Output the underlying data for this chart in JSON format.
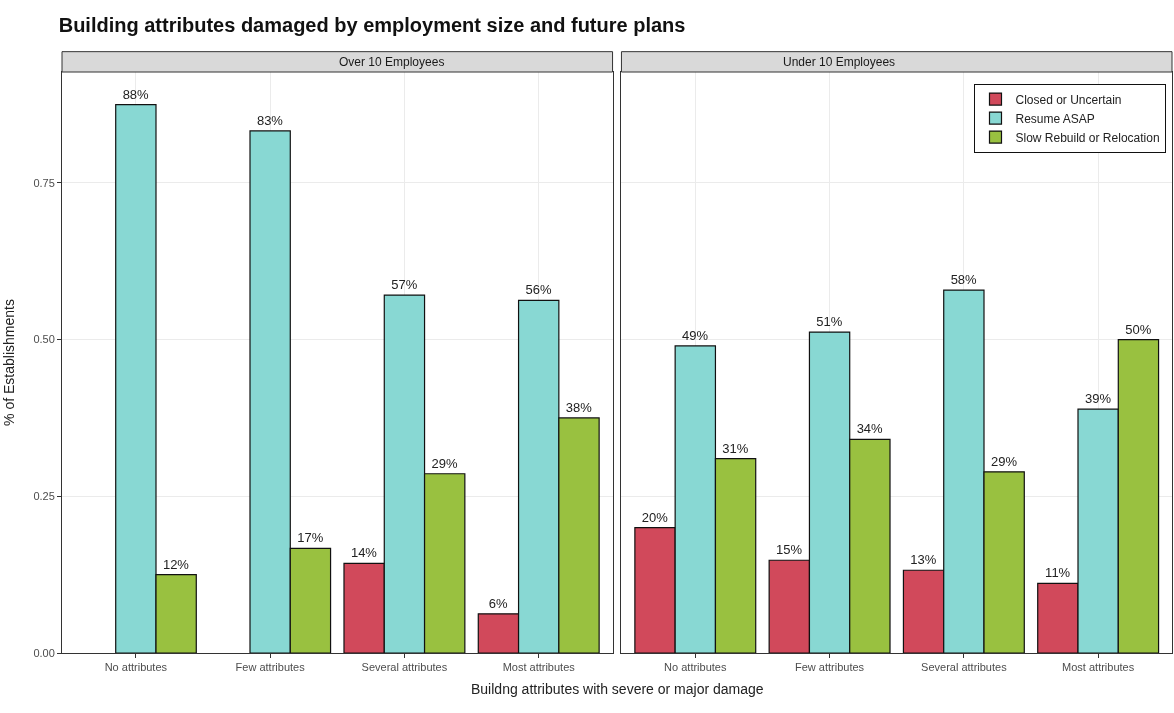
{
  "chart_data": [
    {
      "type": "bar",
      "title": "Building attributes damaged by employment size and future plans",
      "subtitle": "Over 10 Employees",
      "xlabel": "Buildng attributes with severe or major damage",
      "ylabel": "% of Establishments",
      "categories": [
        "No attributes",
        "Few attributes",
        "Several attributes",
        "Most attributes"
      ],
      "series": [
        {
          "color": "#d1495b",
          "values": [
            null,
            null,
            0.143,
            0.0625
          ],
          "value_labels": [
            null,
            null,
            "14%",
            "6%"
          ]
        },
        {
          "color": "#88d8d3",
          "values": [
            0.875,
            0.833,
            0.571,
            0.5625
          ],
          "value_labels": [
            "88%",
            "83%",
            "57%",
            "56%"
          ]
        },
        {
          "color": "#99c140",
          "values": [
            0.125,
            0.167,
            0.286,
            0.375
          ],
          "value_labels": [
            "12%",
            "17%",
            "29%",
            "38%"
          ]
        }
      ],
      "ylim": [
        0,
        0.927
      ],
      "yticks": [
        {
          "value": 0,
          "label": "0.00"
        },
        {
          "value": 0.25,
          "label": "0.25"
        },
        {
          "value": 0.5,
          "label": "0.50"
        },
        {
          "value": 0.75,
          "label": "0.75"
        }
      ],
      "grid": true,
      "legend": false
    },
    {
      "type": "bar",
      "subtitle": "Under 10 Employees",
      "categories": [
        "No attributes",
        "Few attributes",
        "Several attributes",
        "Most attributes"
      ],
      "series": [
        {
          "name": "Closed or Uncertain",
          "color": "#d1495b",
          "values": [
            0.2,
            0.148,
            0.132,
            0.111
          ],
          "value_labels": [
            "20%",
            "15%",
            "13%",
            "11%"
          ]
        },
        {
          "name": "Resume ASAP",
          "color": "#88d8d3",
          "values": [
            0.49,
            0.512,
            0.579,
            0.389
          ],
          "value_labels": [
            "49%",
            "51%",
            "58%",
            "39%"
          ]
        },
        {
          "name": "Slow Rebuild or Relocation",
          "color": "#99c140",
          "values": [
            0.31,
            0.341,
            0.289,
            0.5
          ],
          "value_labels": [
            "31%",
            "34%",
            "29%",
            "50%"
          ]
        }
      ],
      "ylim": [
        0,
        0.927
      ],
      "yticks": [
        0,
        0.25,
        0.5,
        0.75
      ],
      "grid": true,
      "legend": "top right",
      "tick_labels": "x"
    }
  ]
}
